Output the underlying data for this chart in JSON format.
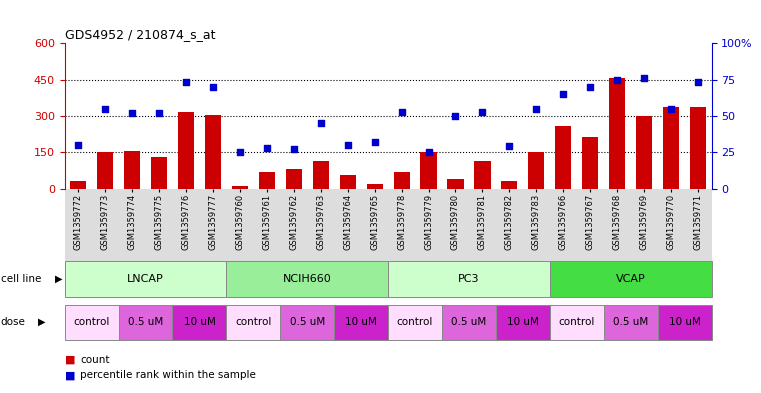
{
  "title": "GDS4952 / 210874_s_at",
  "samples": [
    "GSM1359772",
    "GSM1359773",
    "GSM1359774",
    "GSM1359775",
    "GSM1359776",
    "GSM1359777",
    "GSM1359760",
    "GSM1359761",
    "GSM1359762",
    "GSM1359763",
    "GSM1359764",
    "GSM1359765",
    "GSM1359778",
    "GSM1359779",
    "GSM1359780",
    "GSM1359781",
    "GSM1359782",
    "GSM1359783",
    "GSM1359766",
    "GSM1359767",
    "GSM1359768",
    "GSM1359769",
    "GSM1359770",
    "GSM1359771"
  ],
  "bar_values": [
    30,
    150,
    155,
    130,
    315,
    305,
    10,
    70,
    80,
    115,
    55,
    20,
    70,
    150,
    40,
    115,
    30,
    150,
    260,
    215,
    455,
    300,
    335,
    335
  ],
  "dot_values": [
    30,
    55,
    52,
    52,
    73,
    70,
    25,
    28,
    27,
    45,
    30,
    32,
    53,
    25,
    50,
    53,
    29,
    55,
    65,
    70,
    75,
    76,
    55,
    73
  ],
  "bar_color": "#cc0000",
  "dot_color": "#0000cc",
  "ylim_left": [
    0,
    600
  ],
  "ylim_right": [
    0,
    100
  ],
  "yticks_left": [
    0,
    150,
    300,
    450,
    600
  ],
  "yticks_right": [
    0,
    25,
    50,
    75,
    100
  ],
  "ytick_labels_right": [
    "0",
    "25",
    "50",
    "75",
    "100%"
  ],
  "cell_lines": [
    {
      "name": "LNCAP",
      "start": 0,
      "end": 5,
      "color": "#ccffcc"
    },
    {
      "name": "NCIH660",
      "start": 6,
      "end": 11,
      "color": "#99ee99"
    },
    {
      "name": "PC3",
      "start": 12,
      "end": 17,
      "color": "#ccffcc"
    },
    {
      "name": "VCAP",
      "start": 18,
      "end": 23,
      "color": "#44dd44"
    }
  ],
  "dose_groups": [
    {
      "name": "control",
      "start": 0,
      "end": 1,
      "color": "#ffddff"
    },
    {
      "name": "0.5 uM",
      "start": 2,
      "end": 3,
      "color": "#dd66dd"
    },
    {
      "name": "10 uM",
      "start": 4,
      "end": 5,
      "color": "#cc22cc"
    },
    {
      "name": "control",
      "start": 6,
      "end": 7,
      "color": "#ffddff"
    },
    {
      "name": "0.5 uM",
      "start": 8,
      "end": 9,
      "color": "#dd66dd"
    },
    {
      "name": "10 uM",
      "start": 10,
      "end": 11,
      "color": "#cc22cc"
    },
    {
      "name": "control",
      "start": 12,
      "end": 13,
      "color": "#ffddff"
    },
    {
      "name": "0.5 uM",
      "start": 14,
      "end": 15,
      "color": "#dd66dd"
    },
    {
      "name": "10 uM",
      "start": 16,
      "end": 17,
      "color": "#cc22cc"
    },
    {
      "name": "control",
      "start": 18,
      "end": 19,
      "color": "#ffddff"
    },
    {
      "name": "0.5 uM",
      "start": 20,
      "end": 21,
      "color": "#dd66dd"
    },
    {
      "name": "10 uM",
      "start": 22,
      "end": 23,
      "color": "#cc22cc"
    }
  ],
  "bg_color": "#ffffff",
  "plot_bg": "#ffffff",
  "axis_color_left": "#cc0000",
  "axis_color_right": "#0000cc"
}
